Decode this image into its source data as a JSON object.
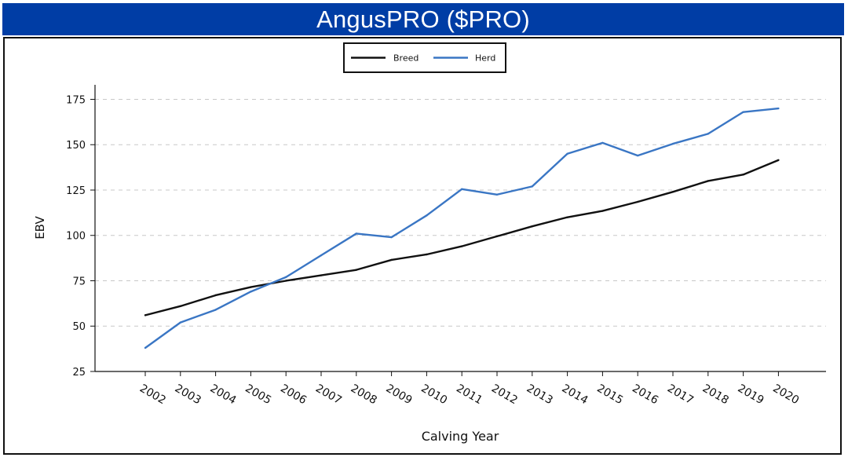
{
  "header": {
    "title": "AngusPRO ($PRO)"
  },
  "colors": {
    "title_bar": "#003da5",
    "breed": "#111111",
    "herd": "#3a76c4",
    "grid": "#c8c8c8"
  },
  "chart_data": {
    "type": "line",
    "title": "AngusPRO ($PRO)",
    "xlabel": "Calving Year",
    "ylabel": "EBV",
    "x": [
      2002,
      2003,
      2004,
      2005,
      2006,
      2007,
      2008,
      2009,
      2010,
      2011,
      2012,
      2013,
      2014,
      2015,
      2016,
      2017,
      2018,
      2019,
      2020
    ],
    "ylim": [
      25,
      183
    ],
    "yticks": [
      25,
      50,
      75,
      100,
      125,
      150,
      175
    ],
    "grid": "horizontal-dashed",
    "legend_position": "top-center",
    "series": [
      {
        "name": "Breed",
        "color": "#111111",
        "values": [
          56,
          61,
          67,
          71.5,
          75,
          78,
          81,
          86.5,
          89.5,
          94,
          99.5,
          105,
          110,
          113.5,
          118.5,
          124,
          130,
          133.5,
          141.5
        ]
      },
      {
        "name": "Herd",
        "color": "#3a76c4",
        "values": [
          38,
          52,
          59,
          69,
          77,
          89,
          101,
          99,
          111,
          125.5,
          122.5,
          127,
          145,
          151,
          144,
          150.5,
          156,
          168,
          170
        ]
      }
    ]
  }
}
